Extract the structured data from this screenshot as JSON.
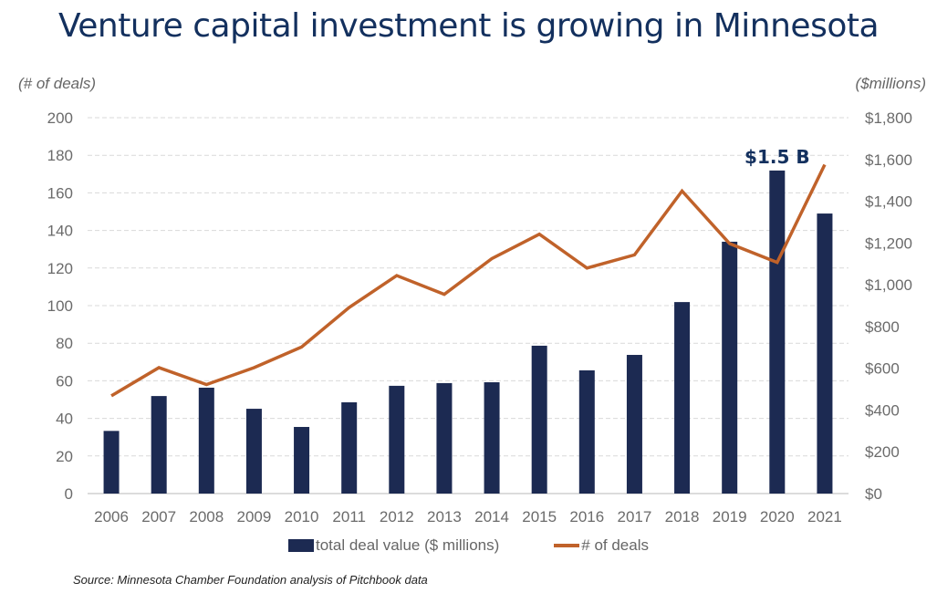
{
  "chart_data": {
    "type": "bar",
    "title": "Venture capital investment is growing in Minnesota",
    "xlabel": "",
    "ylabel_left": "(# of deals)",
    "ylabel_right": "($millions)",
    "categories": [
      "2006",
      "2007",
      "2008",
      "2009",
      "2010",
      "2011",
      "2012",
      "2013",
      "2014",
      "2015",
      "2016",
      "2017",
      "2018",
      "2019",
      "2020",
      "2021"
    ],
    "series": [
      {
        "name": "total deal value ($ millions)",
        "type": "bar",
        "axis": "right",
        "color": "#1c2a52",
        "values": [
          300,
          467,
          507,
          406,
          319,
          437,
          516,
          529,
          533,
          708,
          590,
          664,
          917,
          1206,
          1547,
          1341
        ]
      },
      {
        "name": "# of deals",
        "type": "line",
        "axis": "left",
        "color": "#c0622a",
        "values": [
          52,
          67,
          58,
          67,
          78,
          99,
          116,
          106,
          125,
          138,
          120,
          127,
          161,
          133,
          123,
          175
        ]
      }
    ],
    "ylim_left": [
      0,
      200
    ],
    "ylim_right": [
      0,
      1800
    ],
    "yticks_left": [
      "0",
      "20",
      "40",
      "60",
      "80",
      "100",
      "120",
      "140",
      "160",
      "180",
      "200"
    ],
    "yticks_right": [
      "$0",
      "$200",
      "$400",
      "$600",
      "$800",
      "$1,000",
      "$1,200",
      "$1,400",
      "$1,600",
      "$1,800"
    ],
    "grid": true,
    "legend": "bottom",
    "annotations": [
      {
        "text": "$1.5 B",
        "category": "2020",
        "series": "total deal value ($ millions)"
      }
    ]
  },
  "source": "Source: Minnesota Chamber Foundation analysis of Pitchbook data",
  "colors": {
    "title": "#13305e",
    "bar": "#1c2a52",
    "line": "#c0622a",
    "grid": "#d9d9d9",
    "tick": "#6b6b6b"
  }
}
